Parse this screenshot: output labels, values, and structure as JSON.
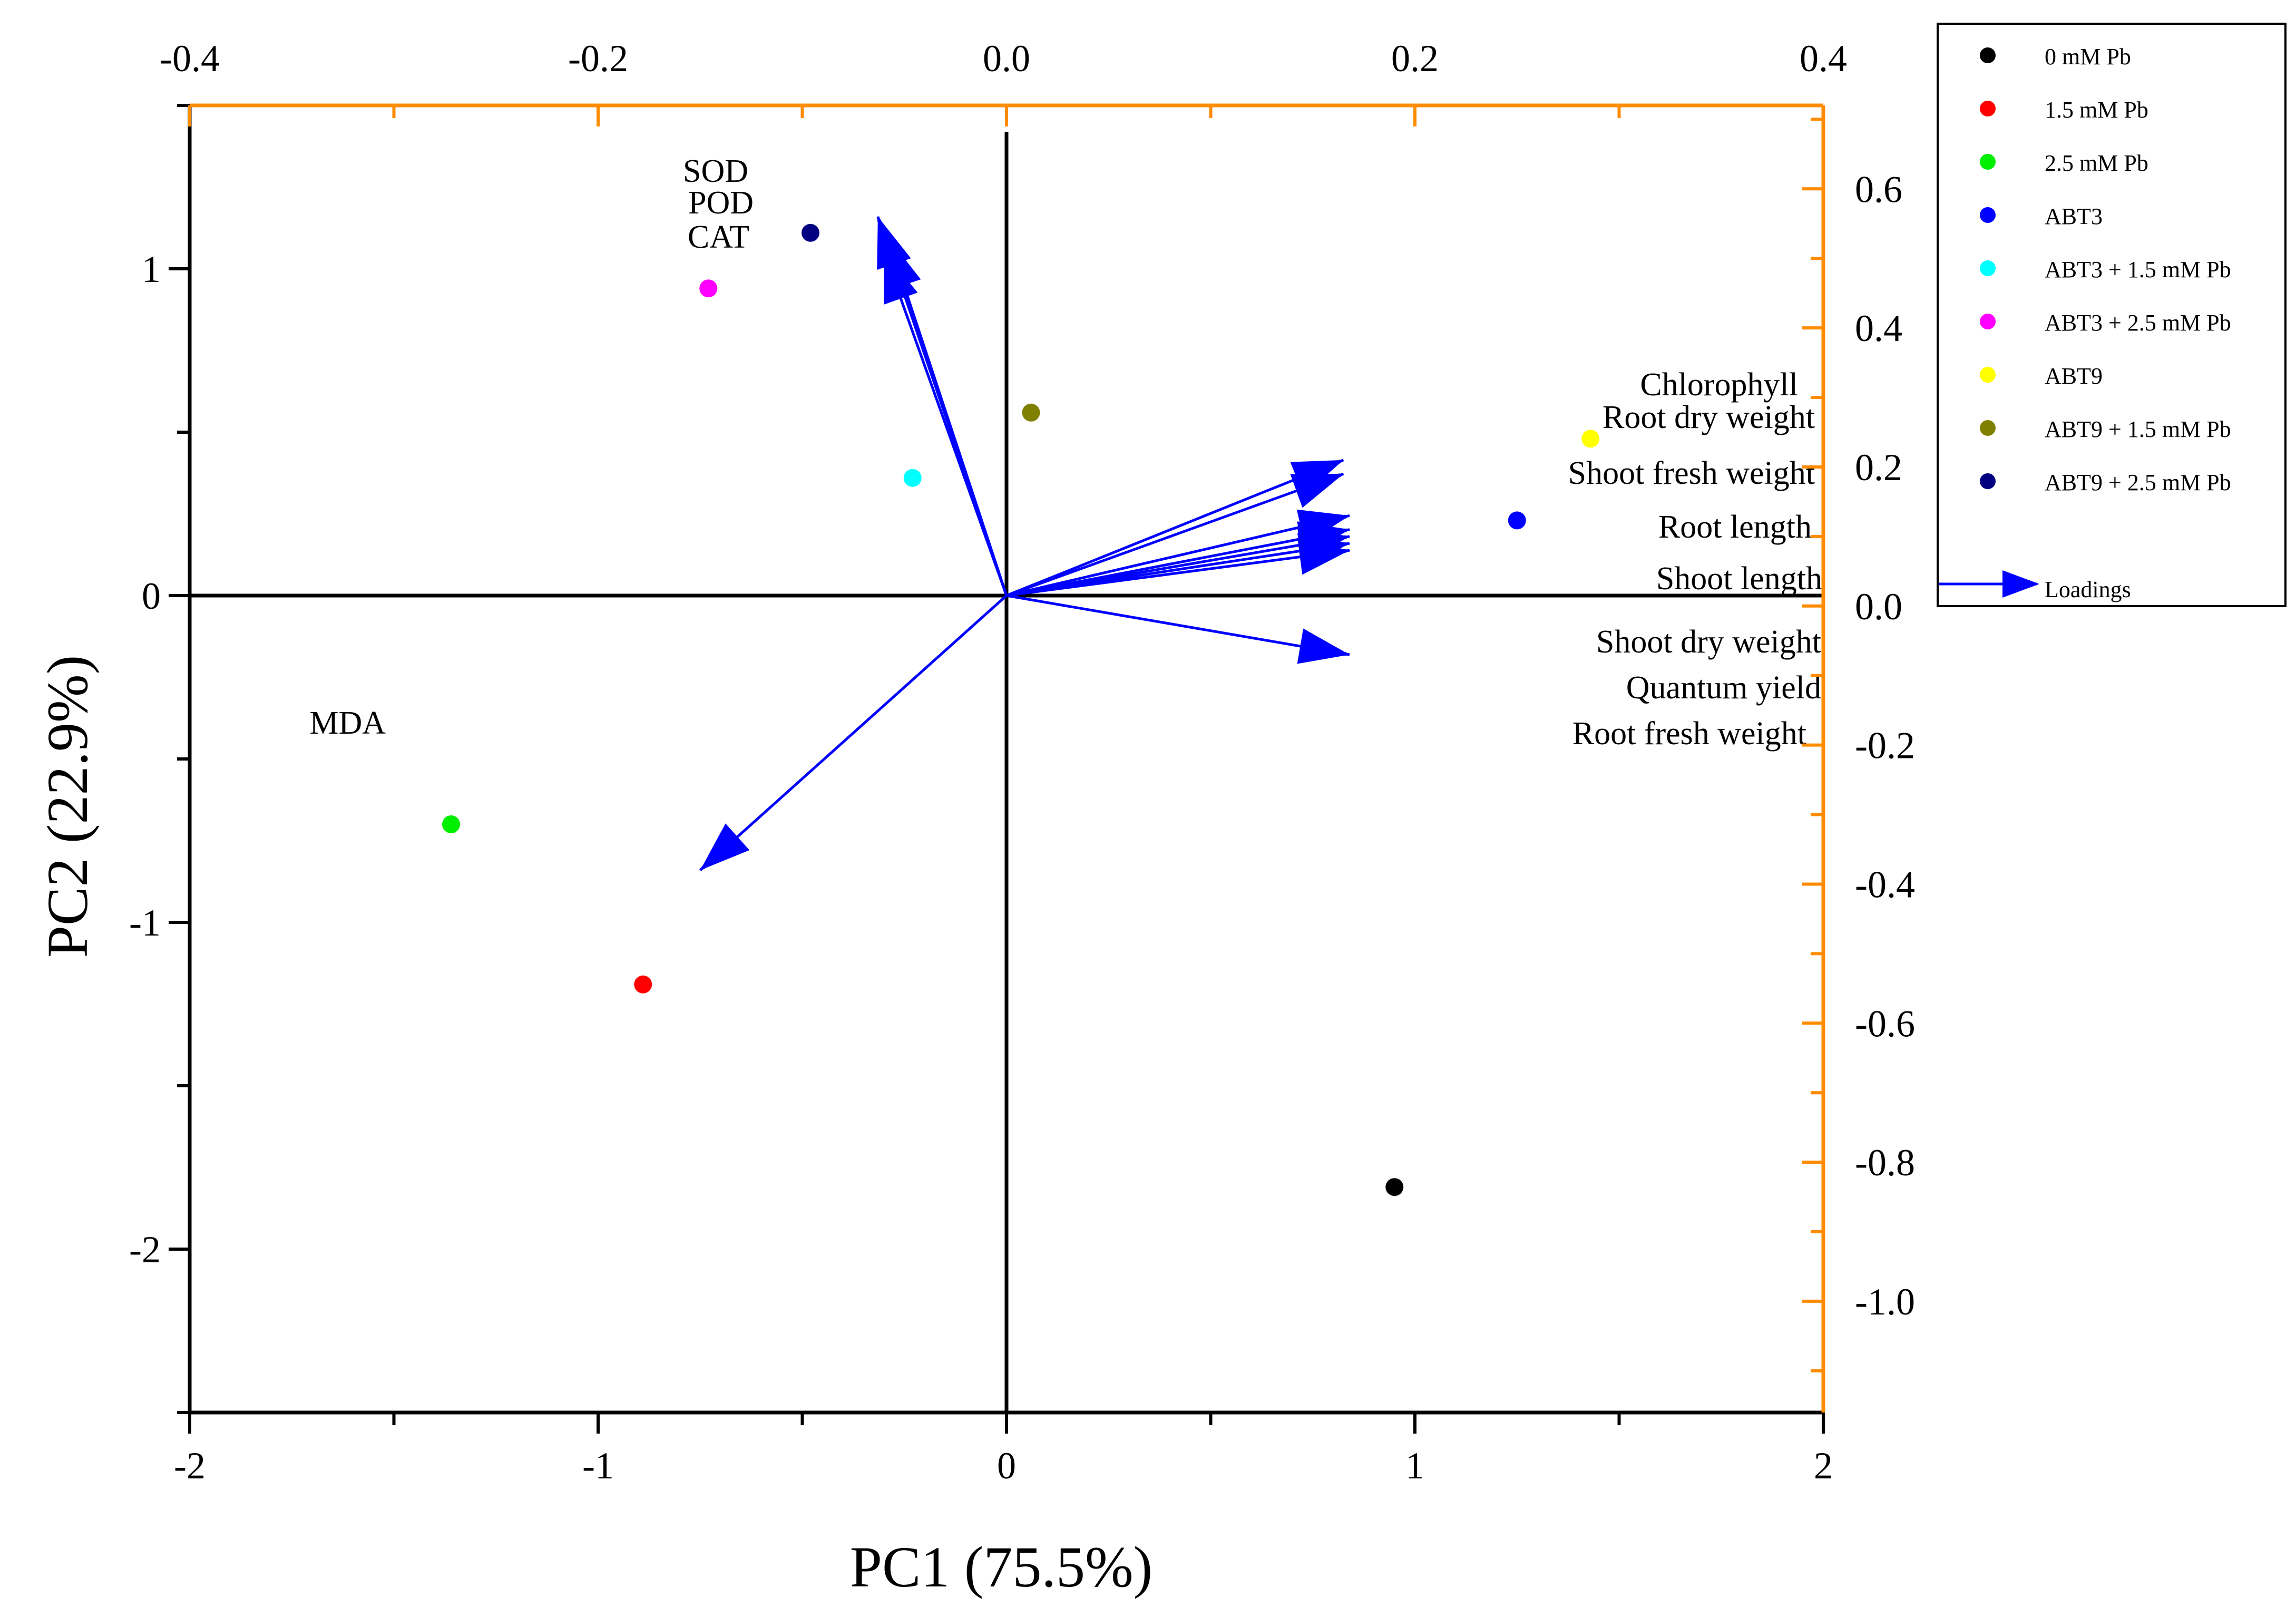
{
  "chart_data": {
    "type": "scatter",
    "subtype": "pca-biplot",
    "title": "",
    "xlabel": "PC1 (75.5%)",
    "ylabel": "PC2 (22.9%)",
    "xlim": [
      -2,
      2
    ],
    "ylim": [
      -2.5,
      1.5
    ],
    "x_ticks": [
      "-2",
      "-1",
      "0",
      "1",
      "2"
    ],
    "y_ticks": [
      "-2",
      "-1",
      "0",
      "1"
    ],
    "x_tick_values": [
      -2,
      -1,
      0,
      1,
      2
    ],
    "y_tick_values": [
      -2,
      -1,
      0,
      1
    ],
    "loading_axes": {
      "color": "#FF8C00",
      "top_xlim": [
        -0.4,
        0.4
      ],
      "right_ylim": [
        -1.16,
        0.72
      ],
      "top_ticks": [
        "-0.4",
        "-0.2",
        "0.0",
        "0.2",
        "0.4"
      ],
      "top_tick_values": [
        -0.4,
        -0.2,
        0.0,
        0.2,
        0.4
      ],
      "right_ticks": [
        "0.6",
        "0.4",
        "0.2",
        "0.0",
        "-0.2",
        "-0.4",
        "-0.6",
        "-0.8",
        "-1.0"
      ],
      "right_tick_values": [
        0.6,
        0.4,
        0.2,
        0.0,
        -0.2,
        -0.4,
        -0.6,
        -0.8,
        -1.0
      ]
    },
    "grid": false,
    "zero_lines": true,
    "legend_position": "right, outside top",
    "series": [
      {
        "name": "0 mM Pb",
        "color": "#000000",
        "x": 0.95,
        "y": -1.81
      },
      {
        "name": "1.5 mM Pb",
        "color": "#FF0000",
        "x": -0.89,
        "y": -1.19
      },
      {
        "name": "2.5 mM Pb",
        "color": "#00EE00",
        "x": -1.36,
        "y": -0.7
      },
      {
        "name": "ABT3",
        "color": "#0000FF",
        "x": 1.25,
        "y": 0.23
      },
      {
        "name": "ABT3 + 1.5 mM Pb",
        "color": "#00FFFF",
        "x": -0.23,
        "y": 0.36
      },
      {
        "name": "ABT3 + 2.5 mM Pb",
        "color": "#FF00FF",
        "x": -0.73,
        "y": 0.94
      },
      {
        "name": "ABT9",
        "color": "#FFFF00",
        "x": 1.43,
        "y": 0.48
      },
      {
        "name": "ABT9 + 1.5 mM Pb",
        "color": "#808000",
        "x": 0.06,
        "y": 0.56
      },
      {
        "name": "ABT9 + 2.5 mM Pb",
        "color": "#000080",
        "x": -0.48,
        "y": 1.11
      }
    ],
    "loadings_legend": "Loadings",
    "loadings_color": "#0000FF",
    "loadings": [
      {
        "name": "SOD",
        "x": -0.063,
        "y": 0.56
      },
      {
        "name": "POD",
        "x": -0.058,
        "y": 0.53
      },
      {
        "name": "CAT",
        "x": -0.06,
        "y": 0.51
      },
      {
        "name": "MDA",
        "x": -0.15,
        "y": -0.38
      },
      {
        "name": "Chlorophyll",
        "x": 0.165,
        "y": 0.21
      },
      {
        "name": "Root dry weight",
        "x": 0.165,
        "y": 0.19
      },
      {
        "name": "Shoot fresh weight",
        "x": 0.168,
        "y": 0.13
      },
      {
        "name": "Root length",
        "x": 0.168,
        "y": 0.11
      },
      {
        "name": "Shoot length",
        "x": 0.168,
        "y": 0.09
      },
      {
        "name": "Shoot dry weight",
        "x": 0.168,
        "y": 0.1
      },
      {
        "name": "Quantum yield",
        "x": 0.168,
        "y": 0.08
      },
      {
        "name": "Root fresh weight",
        "x": 0.168,
        "y": -0.07
      }
    ]
  }
}
